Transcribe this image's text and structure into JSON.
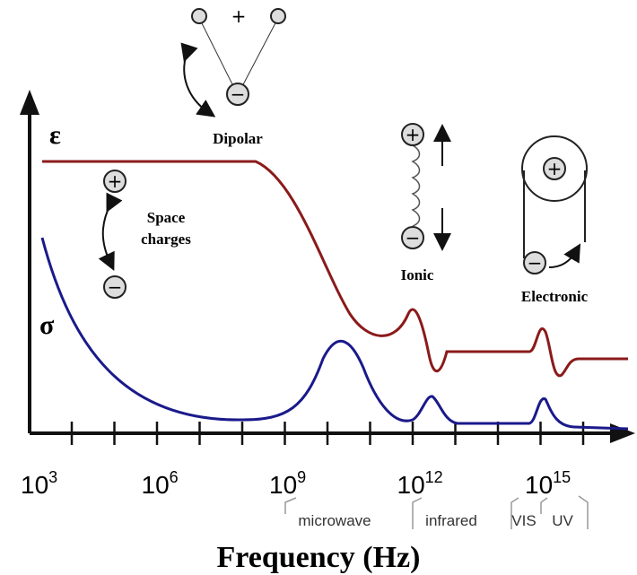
{
  "symbols": {
    "epsilon": "ε",
    "sigma": "σ",
    "plus": "+",
    "minus": "−"
  },
  "mechanisms": {
    "dipolar": "Dipolar",
    "space_charges": [
      "Space",
      "charges"
    ],
    "ionic": "Ionic",
    "electronic": "Electronic"
  },
  "axis": {
    "label": "Frequency (Hz)",
    "ticks": [
      {
        "base": "10",
        "exponent": "3"
      },
      {
        "base": "10",
        "exponent": "6"
      },
      {
        "base": "10",
        "exponent": "9"
      },
      {
        "base": "10",
        "exponent": "12"
      },
      {
        "base": "10",
        "exponent": "15"
      }
    ]
  },
  "bands": [
    "microwave",
    "infrared",
    "VIS",
    "UV"
  ]
}
